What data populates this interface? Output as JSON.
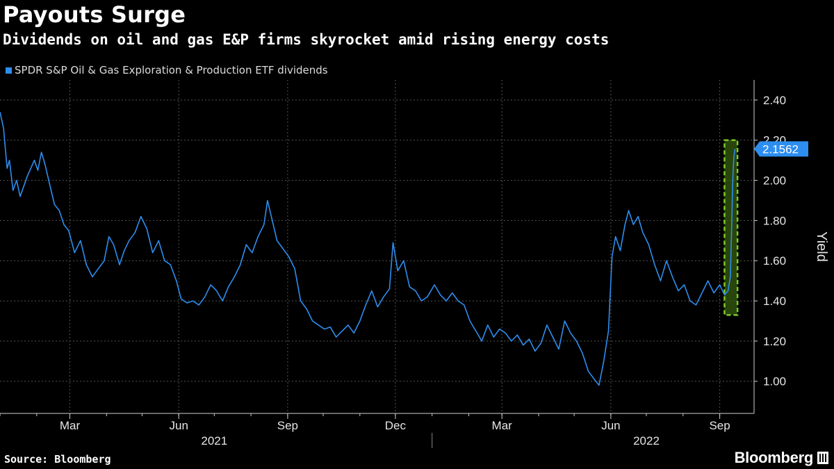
{
  "header": {
    "title": "Payouts Surge",
    "subtitle": "Dividends on oil and gas E&P firms skyrocket amid rising energy costs"
  },
  "footer": {
    "source": "Source: Bloomberg",
    "brand": "Bloomberg"
  },
  "colors": {
    "background": "#000000",
    "series": "#2e8ef0",
    "highlight_box": "#7ec825",
    "grid": "#555555",
    "last_value_badge": "#2e8ef0"
  },
  "chart_data": {
    "type": "line",
    "title": "Payouts Surge",
    "subtitle": "Dividends on oil and gas E&P firms skyrocket amid rising energy costs",
    "ylabel": "Yield",
    "xlabel": "",
    "ylim": [
      0.84,
      2.5
    ],
    "yticks": [
      "1.00",
      "1.20",
      "1.40",
      "1.60",
      "1.80",
      "2.00",
      "2.20",
      "2.40"
    ],
    "xlim": [
      "2021-01-01",
      "2022-09-30"
    ],
    "xticks": [
      {
        "date": "2021-03-01",
        "label": "Mar"
      },
      {
        "date": "2021-06-01",
        "label": "Jun"
      },
      {
        "date": "2021-09-01",
        "label": "Sep"
      },
      {
        "date": "2021-12-01",
        "label": "Dec"
      },
      {
        "date": "2022-03-01",
        "label": "Mar"
      },
      {
        "date": "2022-06-01",
        "label": "Jun"
      },
      {
        "date": "2022-09-01",
        "label": "Sep"
      }
    ],
    "year_labels": [
      {
        "label": "2021",
        "center": "2021-07-01"
      },
      {
        "label": "2022",
        "center": "2022-07-01"
      }
    ],
    "year_divider": "2022-01-01",
    "grid": true,
    "legend_placement": "top-left",
    "axis_position": "right",
    "last_value_label": "2.1562",
    "highlight_range": {
      "x0": "2022-09-05",
      "x1": "2022-09-16",
      "y0": 1.33,
      "y1": 2.2
    },
    "series": [
      {
        "name": "SPDR S&P Oil & Gas Exploration & Production ETF dividends",
        "points": [
          [
            "2021-01-01",
            2.34
          ],
          [
            "2021-01-04",
            2.26
          ],
          [
            "2021-01-07",
            2.06
          ],
          [
            "2021-01-09",
            2.1
          ],
          [
            "2021-01-12",
            1.95
          ],
          [
            "2021-01-15",
            2.0
          ],
          [
            "2021-01-18",
            1.92
          ],
          [
            "2021-01-21",
            1.97
          ],
          [
            "2021-01-24",
            2.02
          ],
          [
            "2021-01-27",
            2.06
          ],
          [
            "2021-01-30",
            2.1
          ],
          [
            "2021-02-02",
            2.05
          ],
          [
            "2021-02-05",
            2.14
          ],
          [
            "2021-02-08",
            2.08
          ],
          [
            "2021-02-12",
            1.98
          ],
          [
            "2021-02-16",
            1.88
          ],
          [
            "2021-02-20",
            1.85
          ],
          [
            "2021-02-24",
            1.78
          ],
          [
            "2021-02-28",
            1.75
          ],
          [
            "2021-03-05",
            1.64
          ],
          [
            "2021-03-10",
            1.7
          ],
          [
            "2021-03-15",
            1.58
          ],
          [
            "2021-03-20",
            1.52
          ],
          [
            "2021-03-25",
            1.56
          ],
          [
            "2021-03-30",
            1.6
          ],
          [
            "2021-04-03",
            1.72
          ],
          [
            "2021-04-07",
            1.68
          ],
          [
            "2021-04-12",
            1.58
          ],
          [
            "2021-04-16",
            1.65
          ],
          [
            "2021-04-20",
            1.7
          ],
          [
            "2021-04-25",
            1.74
          ],
          [
            "2021-04-30",
            1.82
          ],
          [
            "2021-05-05",
            1.76
          ],
          [
            "2021-05-10",
            1.64
          ],
          [
            "2021-05-15",
            1.7
          ],
          [
            "2021-05-20",
            1.6
          ],
          [
            "2021-05-25",
            1.58
          ],
          [
            "2021-05-30",
            1.5
          ],
          [
            "2021-06-03",
            1.41
          ],
          [
            "2021-06-08",
            1.39
          ],
          [
            "2021-06-13",
            1.4
          ],
          [
            "2021-06-18",
            1.38
          ],
          [
            "2021-06-23",
            1.42
          ],
          [
            "2021-06-28",
            1.48
          ],
          [
            "2021-07-03",
            1.45
          ],
          [
            "2021-07-08",
            1.4
          ],
          [
            "2021-07-13",
            1.47
          ],
          [
            "2021-07-18",
            1.52
          ],
          [
            "2021-07-23",
            1.58
          ],
          [
            "2021-07-28",
            1.68
          ],
          [
            "2021-08-02",
            1.64
          ],
          [
            "2021-08-07",
            1.72
          ],
          [
            "2021-08-12",
            1.78
          ],
          [
            "2021-08-15",
            1.9
          ],
          [
            "2021-08-19",
            1.8
          ],
          [
            "2021-08-23",
            1.7
          ],
          [
            "2021-08-28",
            1.66
          ],
          [
            "2021-09-02",
            1.62
          ],
          [
            "2021-09-07",
            1.56
          ],
          [
            "2021-09-12",
            1.4
          ],
          [
            "2021-09-17",
            1.36
          ],
          [
            "2021-09-22",
            1.3
          ],
          [
            "2021-09-27",
            1.28
          ],
          [
            "2021-10-02",
            1.26
          ],
          [
            "2021-10-07",
            1.27
          ],
          [
            "2021-10-12",
            1.22
          ],
          [
            "2021-10-17",
            1.25
          ],
          [
            "2021-10-22",
            1.28
          ],
          [
            "2021-10-27",
            1.24
          ],
          [
            "2021-11-01",
            1.3
          ],
          [
            "2021-11-06",
            1.38
          ],
          [
            "2021-11-11",
            1.45
          ],
          [
            "2021-11-16",
            1.37
          ],
          [
            "2021-11-21",
            1.42
          ],
          [
            "2021-11-26",
            1.46
          ],
          [
            "2021-11-29",
            1.69
          ],
          [
            "2021-12-03",
            1.55
          ],
          [
            "2021-12-08",
            1.6
          ],
          [
            "2021-12-13",
            1.47
          ],
          [
            "2021-12-18",
            1.45
          ],
          [
            "2021-12-23",
            1.4
          ],
          [
            "2021-12-28",
            1.42
          ],
          [
            "2022-01-03",
            1.48
          ],
          [
            "2022-01-08",
            1.43
          ],
          [
            "2022-01-13",
            1.4
          ],
          [
            "2022-01-18",
            1.44
          ],
          [
            "2022-01-23",
            1.4
          ],
          [
            "2022-01-28",
            1.38
          ],
          [
            "2022-02-02",
            1.3
          ],
          [
            "2022-02-07",
            1.25
          ],
          [
            "2022-02-12",
            1.2
          ],
          [
            "2022-02-17",
            1.28
          ],
          [
            "2022-02-22",
            1.22
          ],
          [
            "2022-02-27",
            1.26
          ],
          [
            "2022-03-04",
            1.24
          ],
          [
            "2022-03-09",
            1.2
          ],
          [
            "2022-03-14",
            1.23
          ],
          [
            "2022-03-19",
            1.18
          ],
          [
            "2022-03-24",
            1.21
          ],
          [
            "2022-03-29",
            1.15
          ],
          [
            "2022-04-03",
            1.19
          ],
          [
            "2022-04-08",
            1.28
          ],
          [
            "2022-04-13",
            1.22
          ],
          [
            "2022-04-18",
            1.16
          ],
          [
            "2022-04-23",
            1.3
          ],
          [
            "2022-04-28",
            1.24
          ],
          [
            "2022-05-03",
            1.2
          ],
          [
            "2022-05-08",
            1.14
          ],
          [
            "2022-05-13",
            1.05
          ],
          [
            "2022-05-18",
            1.01
          ],
          [
            "2022-05-22",
            0.98
          ],
          [
            "2022-05-26",
            1.1
          ],
          [
            "2022-05-30",
            1.25
          ],
          [
            "2022-06-02",
            1.62
          ],
          [
            "2022-06-05",
            1.72
          ],
          [
            "2022-06-09",
            1.65
          ],
          [
            "2022-06-13",
            1.78
          ],
          [
            "2022-06-16",
            1.85
          ],
          [
            "2022-06-20",
            1.78
          ],
          [
            "2022-06-24",
            1.82
          ],
          [
            "2022-06-28",
            1.74
          ],
          [
            "2022-07-03",
            1.68
          ],
          [
            "2022-07-08",
            1.58
          ],
          [
            "2022-07-13",
            1.5
          ],
          [
            "2022-07-18",
            1.6
          ],
          [
            "2022-07-23",
            1.52
          ],
          [
            "2022-07-28",
            1.45
          ],
          [
            "2022-08-02",
            1.48
          ],
          [
            "2022-08-07",
            1.4
          ],
          [
            "2022-08-12",
            1.38
          ],
          [
            "2022-08-17",
            1.44
          ],
          [
            "2022-08-22",
            1.5
          ],
          [
            "2022-08-27",
            1.44
          ],
          [
            "2022-09-01",
            1.48
          ],
          [
            "2022-09-05",
            1.43
          ],
          [
            "2022-09-08",
            1.45
          ],
          [
            "2022-09-10",
            1.52
          ],
          [
            "2022-09-11",
            1.75
          ],
          [
            "2022-09-12",
            2.0
          ],
          [
            "2022-09-13",
            2.12
          ],
          [
            "2022-09-14",
            2.1562
          ]
        ]
      }
    ]
  }
}
